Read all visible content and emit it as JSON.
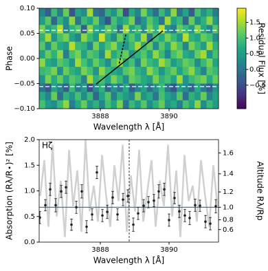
{
  "chart_data": [
    {
      "type": "heatmap",
      "xlabel": "Wavelength λ [Å]",
      "ylabel": "Phase",
      "xlim": [
        3886.22,
        3891.44
      ],
      "ylim": [
        -0.1,
        0.1
      ],
      "xticks": [
        3888,
        3890
      ],
      "yticks": [
        {
          "value": 0.1,
          "label": "0.10"
        },
        {
          "value": 0.05,
          "label": "0.05"
        },
        {
          "value": 0,
          "label": "0.00"
        },
        {
          "value": -0.05,
          "label": "−0.05"
        },
        {
          "value": -0.1,
          "label": "−0.10"
        }
      ],
      "colormap": "viridis",
      "colorbar": {
        "label": "Residual Flux [%]",
        "lim": [
          -1.25,
          1.95
        ],
        "ticks": [
          {
            "value": -0.5,
            "label": "−0.5"
          },
          {
            "value": 0,
            "label": "0.0"
          },
          0.5,
          {
            "value": 1,
            "label": "1.0"
          },
          1.5
        ]
      },
      "z": [
        [
          0.2,
          -0.3,
          0.9,
          0.1,
          1.2,
          -0.4,
          0.6,
          0.3,
          1.5,
          0.0,
          -0.2,
          0.8,
          0.4,
          1.1,
          -0.5,
          0.7,
          0.2,
          1.3,
          0.5,
          -0.1,
          0.9,
          0.3,
          1.4,
          0.0,
          0.6,
          -0.3,
          1.0,
          0.4,
          0.8,
          0.1
        ],
        [
          0.5,
          1.1,
          -0.2,
          0.8,
          0.3,
          1.4,
          0.0,
          0.9,
          0.6,
          1.2,
          0.2,
          -0.4,
          1.0,
          0.5,
          0.8,
          1.3,
          -0.1,
          0.4,
          1.1,
          0.7,
          0.0,
          1.5,
          0.6,
          0.9,
          -0.2,
          1.2,
          0.3,
          0.8,
          1.4,
          0.5
        ],
        [
          1.3,
          0.6,
          0.9,
          1.6,
          0.2,
          0.8,
          1.1,
          -0.3,
          1.4,
          0.7,
          0.5,
          1.2,
          0.9,
          0.0,
          1.5,
          0.6,
          1.0,
          0.3,
          1.3,
          0.8,
          1.6,
          0.4,
          0.1,
          1.2,
          0.9,
          0.5,
          1.4,
          0.7,
          0.2,
          1.1
        ],
        [
          0.8,
          1.5,
          0.4,
          1.0,
          1.3,
          0.6,
          0.2,
          1.4,
          0.9,
          0.5,
          1.7,
          0.8,
          0.3,
          1.2,
          0.7,
          1.1,
          0.6,
          1.5,
          0.0,
          1.0,
          0.7,
          1.3,
          0.9,
          0.4,
          1.6,
          0.8,
          0.6,
          1.2,
          1.0,
          0.3
        ],
        [
          1.1,
          0.3,
          1.2,
          0.7,
          0.5,
          1.6,
          0.9,
          0.8,
          0.2,
          1.3,
          0.6,
          1.0,
          1.4,
          0.7,
          0.4,
          0.9,
          1.5,
          0.8,
          1.2,
          0.3,
          1.1,
          0.6,
          1.4,
          1.0,
          0.2,
          1.3,
          0.9,
          0.5,
          1.5,
          0.8
        ],
        [
          0.6,
          1.2,
          0.8,
          1.4,
          0.1,
          1.0,
          1.3,
          0.6,
          1.1,
          0.9,
          0.3,
          1.5,
          0.7,
          1.0,
          1.2,
          0.4,
          0.8,
          1.1,
          0.6,
          1.4,
          0.9,
          0.2,
          1.0,
          1.3,
          0.7,
          0.5,
          1.2,
          1.5,
          0.4,
          1.0
        ],
        [
          1.4,
          0.7,
          0.5,
          1.1,
          0.9,
          0.4,
          1.5,
          1.0,
          0.6,
          1.2,
          0.8,
          0.3,
          1.1,
          1.4,
          0.6,
          1.0,
          0.2,
          1.3,
          0.9,
          0.7,
          1.5,
          1.1,
          0.5,
          0.8,
          1.2,
          1.0,
          0.3,
          0.9,
          1.3,
          0.6
        ],
        [
          0.9,
          1.0,
          1.3,
          0.3,
          1.2,
          0.8,
          0.6,
          1.3,
          1.0,
          0.4,
          1.4,
          0.9,
          0.7,
          0.5,
          1.1,
          1.3,
          0.8,
          0.6,
          1.4,
          1.0,
          0.4,
          0.9,
          1.2,
          0.6,
          1.0,
          1.4,
          0.8,
          0.2,
          1.1,
          0.9
        ],
        [
          0.4,
          1.3,
          0.7,
          1.2,
          0.6,
          1.1,
          0.9,
          0.2,
          1.5,
          0.8,
          1.0,
          0.6,
          1.3,
          0.9,
          0.3,
          1.2,
          1.0,
          0.7,
          0.5,
          1.3,
          0.8,
          1.0,
          0.6,
          1.5,
          0.4,
          0.9,
          1.1,
          1.3,
          0.7,
          1.2
        ],
        [
          0.0,
          -0.4,
          0.6,
          0.2,
          -0.3,
          0.9,
          0.1,
          0.5,
          -0.5,
          0.3,
          0.8,
          -0.2,
          0.4,
          0.0,
          0.7,
          -0.3,
          0.2,
          0.6,
          -0.1,
          0.4,
          0.9,
          0.0,
          -0.4,
          0.5,
          0.3,
          -0.2,
          0.7,
          0.1,
          -0.3,
          0.4
        ],
        [
          0.7,
          0.2,
          1.2,
          -0.1,
          0.8,
          0.4,
          1.0,
          0.3,
          0.9,
          -0.2,
          0.6,
          1.1,
          0.1,
          0.8,
          0.5,
          0.2,
          1.3,
          0.4,
          0.7,
          0.0,
          1.0,
          0.6,
          0.3,
          1.1,
          -0.1,
          0.8,
          0.5,
          1.2,
          0.2,
          0.6
        ],
        [
          1.0,
          0.5,
          0.3,
          0.9,
          1.4,
          0.1,
          0.7,
          1.2,
          0.4,
          0.8,
          0.2,
          1.0,
          0.6,
          1.3,
          0.0,
          0.9,
          0.5,
          1.1,
          0.3,
          0.8,
          1.2,
          0.4,
          0.7,
          0.1,
          1.0,
          0.6,
          1.4,
          0.3,
          0.9,
          0.5
        ]
      ],
      "hlines": {
        "values": [
          -0.056,
          0.056
        ],
        "color": "#ffffff"
      },
      "lines": [
        {
          "x": [
            3887.88,
            3889.82
          ],
          "y": [
            -0.051,
            0.055
          ],
          "color": "#000000",
          "style": "solid"
        },
        {
          "x": [
            3888.55,
            3888.75
          ],
          "y": [
            -0.01,
            0.05
          ],
          "color": "#000000",
          "style": "dashed"
        }
      ]
    },
    {
      "type": "errorbar",
      "annotation": "Hζ",
      "xlabel": "Wavelength λ [Å]",
      "ylabel": "Absorption (Rλ/R⋆)² [%]",
      "y2label": "Altitude Rλ/Rp",
      "xlim": [
        3886.22,
        3891.44
      ],
      "ylim": [
        0,
        2
      ],
      "xticks": [
        3888,
        3890
      ],
      "yticks": [
        {
          "value": 0,
          "label": "0.0"
        },
        0.5,
        {
          "value": 1,
          "label": "1.0"
        },
        1.5,
        {
          "value": 2,
          "label": "2.0"
        }
      ],
      "y2scale": "square",
      "y2lim": [
        0,
        1.715
      ],
      "y2ticks": [
        0.6,
        0.8,
        {
          "value": 1,
          "label": "1.0"
        },
        1.2,
        1.4,
        1.6
      ],
      "spectrum": {
        "color": "#c8c8c8",
        "x": [
          3886.25,
          3886.37,
          3886.49,
          3886.61,
          3886.73,
          3886.85,
          3886.97,
          3887.09,
          3887.21,
          3887.33,
          3887.45,
          3887.57,
          3887.69,
          3887.81,
          3887.93,
          3888.05,
          3888.17,
          3888.29,
          3888.41,
          3888.53,
          3888.65,
          3888.77,
          3888.89,
          3889.01,
          3889.13,
          3889.25,
          3889.37,
          3889.49,
          3889.61,
          3889.73,
          3889.85,
          3889.97,
          3890.09,
          3890.21,
          3890.33,
          3890.45,
          3890.57,
          3890.69,
          3890.81,
          3890.93,
          3891.05,
          3891.17,
          3891.29,
          3891.41
        ],
        "values": [
          0.9,
          1.6,
          0.3,
          1.9,
          0.5,
          1.2,
          0.1,
          1.8,
          0.7,
          1.4,
          0.2,
          2.0,
          0.6,
          1.1,
          0.4,
          1.7,
          0.9,
          0.3,
          1.5,
          0.8,
          1.9,
          0.2,
          1.3,
          0.6,
          1.8,
          0.4,
          1.0,
          1.6,
          0.3,
          1.2,
          0.7,
          1.9,
          0.5,
          1.4,
          0.1,
          1.7,
          0.8,
          1.1,
          0.4,
          1.6,
          0.9,
          0.3,
          1.5,
          0.7
        ]
      },
      "series": [
        {
          "color": "#222222",
          "x": [
            3886.24,
            3886.4,
            3886.54,
            3886.7,
            3886.86,
            3887.0,
            3887.16,
            3887.3,
            3887.46,
            3887.6,
            3887.76,
            3887.9,
            3888.06,
            3888.2,
            3888.36,
            3888.5,
            3888.66,
            3888.8,
            3888.96,
            3889.1,
            3889.26,
            3889.4,
            3889.56,
            3889.7,
            3889.86,
            3890.0,
            3890.16,
            3890.3,
            3890.46,
            3890.6,
            3890.76,
            3890.9,
            3891.06,
            3891.2,
            3891.36
          ],
          "values": [
            0.48,
            0.72,
            1.03,
            0.72,
            0.99,
            1.07,
            0.34,
            0.68,
            0.99,
            0.3,
            0.54,
            1.36,
            0.52,
            0.59,
            0.87,
            0.54,
            0.83,
            0.9,
            0.34,
            0.56,
            0.71,
            0.78,
            0.81,
            0.99,
            1.03,
            0.43,
            0.86,
            0.6,
            0.52,
            0.47,
            0.72,
            0.71,
            0.4,
            0.36,
            0.7
          ],
          "errors": [
            0.12,
            0.11,
            0.12,
            0.13,
            0.12,
            0.12,
            0.11,
            0.12,
            0.13,
            0.12,
            0.11,
            0.12,
            0.12,
            0.13,
            0.12,
            0.11,
            0.12,
            0.12,
            0.13,
            0.12,
            0.12,
            0.11,
            0.12,
            0.13,
            0.12,
            0.12,
            0.11,
            0.12,
            0.12,
            0.13,
            0.12,
            0.11,
            0.12,
            0.12,
            0.13
          ]
        }
      ],
      "hline": {
        "value": 0.68,
        "color": "#3f76a8"
      },
      "vline": {
        "value": 3888.84,
        "color": "#000000",
        "style": "dashed"
      }
    }
  ]
}
